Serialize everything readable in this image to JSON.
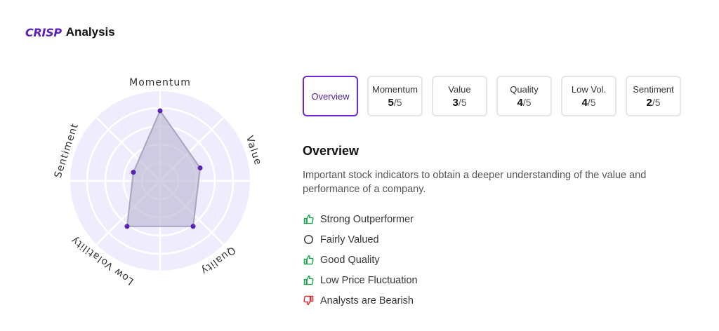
{
  "header": {
    "logo": "CRISP",
    "title": "Analysis"
  },
  "colors": {
    "accent": "#6d28d9",
    "positive": "#16a34a",
    "negative": "#dc2626",
    "radar_bg": "#efedfd",
    "radar_fill": "#b8b2cf"
  },
  "radar": {
    "max": 5,
    "axes": [
      {
        "label": "Momentum",
        "score": 5
      },
      {
        "label": "Value",
        "score": 3
      },
      {
        "label": "Quality",
        "score": 4
      },
      {
        "label": "Low Volatility",
        "score": 4
      },
      {
        "label": "Sentiment",
        "score": 2
      }
    ]
  },
  "tabs": [
    {
      "label": "Overview",
      "active": true
    },
    {
      "label": "Momentum",
      "score": "5",
      "suffix": "/5"
    },
    {
      "label": "Value",
      "score": "3",
      "suffix": "/5"
    },
    {
      "label": "Quality",
      "score": "4",
      "suffix": "/5"
    },
    {
      "label": "Low Vol.",
      "score": "4",
      "suffix": "/5"
    },
    {
      "label": "Sentiment",
      "score": "2",
      "suffix": "/5"
    }
  ],
  "overview": {
    "title": "Overview",
    "description": "Important stock indicators to obtain a deeper understanding of the value and performance of a company.",
    "indicators": [
      {
        "text": "Strong Outperformer",
        "icon": "thumbs-up-icon"
      },
      {
        "text": "Fairly Valued",
        "icon": "circle-icon"
      },
      {
        "text": "Good Quality",
        "icon": "thumbs-up-icon"
      },
      {
        "text": "Low Price Fluctuation",
        "icon": "thumbs-up-icon"
      },
      {
        "text": "Analysts are Bearish",
        "icon": "thumbs-down-icon"
      }
    ]
  }
}
